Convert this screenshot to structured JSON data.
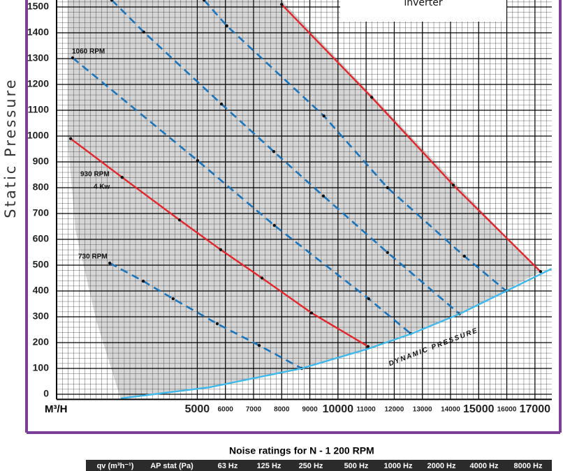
{
  "chart_data": {
    "type": "line",
    "y_label": "Static Pressure",
    "x_label": "M³/H",
    "xlim": [
      0,
      17600
    ],
    "ylim": [
      -20,
      1530
    ],
    "xticks": [
      5000,
      6000,
      7000,
      8000,
      9000,
      10000,
      11000,
      12000,
      13000,
      14000,
      15000,
      16000,
      17000
    ],
    "yticks": [
      0,
      100,
      200,
      300,
      400,
      500,
      600,
      700,
      800,
      900,
      1000,
      1100,
      1200,
      1300,
      1400,
      1500
    ],
    "grid": true,
    "annotations": [
      "1060 RPM",
      "930 RPM",
      "4 Kw",
      "730 RPM",
      "DYNAMIC PRESSURE",
      "inverter"
    ],
    "series": [
      {
        "color": "#e3262b",
        "dash": false,
        "x": [
          8000,
          11200,
          14100,
          17200
        ],
        "values": [
          1510,
          1150,
          810,
          475
        ]
      },
      {
        "color": "#e3262b",
        "dash": false,
        "x": [
          500,
          2330,
          4370,
          5830,
          7300,
          9060,
          11070
        ],
        "values": [
          990,
          840,
          675,
          560,
          450,
          315,
          185
        ]
      },
      {
        "color": "#1b75bc",
        "dash": true,
        "x": [
          570,
          5010,
          7740,
          11090,
          12580
        ],
        "values": [
          1303,
          905,
          654,
          370,
          235
        ]
      },
      {
        "color": "#1b75bc",
        "dash": true,
        "x": [
          1960,
          3100,
          5860,
          7720,
          9480,
          11760,
          14320
        ],
        "values": [
          1527,
          1403,
          1124,
          940,
          768,
          549,
          311
        ]
      },
      {
        "color": "#1b75bc",
        "dash": true,
        "x": [
          5240,
          6050,
          9500,
          11760,
          14490,
          15980
        ],
        "values": [
          1527,
          1427,
          1078,
          800,
          535,
          400
        ]
      },
      {
        "color": "#1b75bc",
        "dash": true,
        "x": [
          1890,
          3080,
          4140,
          5710,
          7200,
          8710
        ],
        "values": [
          508,
          438,
          370,
          273,
          189,
          100
        ]
      },
      {
        "color": "#3fb8ec",
        "dash": false,
        "x": [
          2280,
          5430,
          8710,
          11070,
          12630,
          14320,
          15980,
          17590
        ],
        "values": [
          -16,
          27,
          100,
          176,
          235,
          311,
          400,
          486
        ]
      }
    ]
  },
  "table": {
    "title": "Noise ratings for N - 1 200 RPM",
    "columns": [
      "qv (m³h⁻¹)",
      "AP stat (Pa)",
      "63 Hz",
      "125 Hz",
      "250 Hz",
      "500 Hz",
      "1000 Hz",
      "2000 Hz",
      "4000 Hz",
      "8000 Hz"
    ]
  }
}
